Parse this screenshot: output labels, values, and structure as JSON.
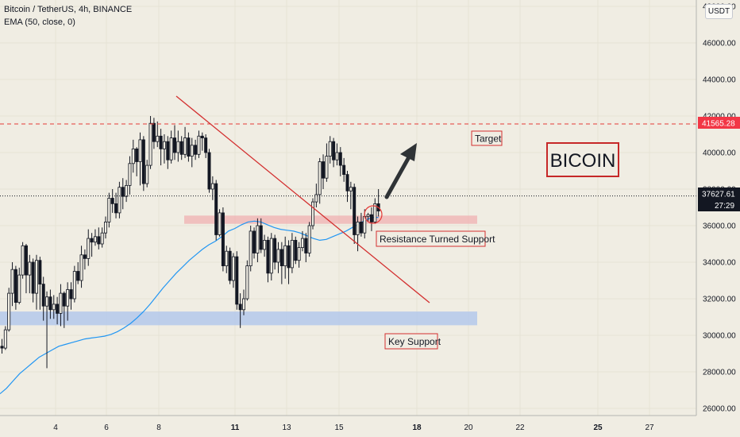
{
  "header": {
    "title": "Bitcoin / TetherUS, 4h, BINANCE",
    "indicator": "EMA (50, close, 0)"
  },
  "currency": "USDT",
  "colors": {
    "background": "#f0ede3",
    "candle": "#131722",
    "ema": "#2196f3",
    "trendline": "#d32f2f",
    "label_red": "#d32f2f",
    "current_price_bg": "#131722",
    "target_bg": "#f23645",
    "support_zone": "#b4c8eb",
    "resistance_zone": "#f0b4b4"
  },
  "chart_data": {
    "type": "candlestick",
    "y_axis": {
      "range": [
        25000,
        48500
      ],
      "ticks": [
        "26000.00",
        "28000.00",
        "30000.00",
        "32000.00",
        "34000.00",
        "36000.00",
        "38000.00",
        "40000.00",
        "42000.00",
        "44000.00",
        "46000.00",
        "48000.00"
      ]
    },
    "x_axis": {
      "ticks": [
        "4",
        "6",
        "8",
        "11",
        "13",
        "15",
        "18",
        "20",
        "22",
        "25",
        "27"
      ],
      "bold": [
        "11",
        "18",
        "25"
      ]
    },
    "price_levels": {
      "target": {
        "value": 41565.28,
        "label": "41565.28"
      },
      "current": {
        "value": 37627.61,
        "label": "37627.61",
        "countdown": "27:29"
      }
    },
    "candles": [
      [
        29400,
        29300,
        29800,
        29000
      ],
      [
        29300,
        30300,
        30500,
        29200
      ],
      [
        30300,
        32300,
        32600,
        30200
      ],
      [
        32300,
        33600,
        34000,
        31600
      ],
      [
        33600,
        31800,
        33800,
        31400
      ],
      [
        31800,
        33300,
        33700,
        31700
      ],
      [
        33300,
        34900,
        35100,
        33100
      ],
      [
        34900,
        33300,
        35000,
        32300
      ],
      [
        33300,
        34000,
        34400,
        32300
      ],
      [
        34000,
        32300,
        34200,
        31800
      ],
      [
        32300,
        34100,
        34400,
        31400
      ],
      [
        34100,
        32800,
        34300,
        31400
      ],
      [
        32800,
        31600,
        33200,
        30800
      ],
      [
        31600,
        32100,
        32400,
        28200
      ],
      [
        32100,
        31400,
        32500,
        30900
      ],
      [
        31400,
        31700,
        32200,
        30900
      ],
      [
        31700,
        31200,
        32100,
        30600
      ],
      [
        31200,
        32300,
        32800,
        30500
      ],
      [
        32300,
        31600,
        32400,
        30400
      ],
      [
        31600,
        32500,
        32900,
        30800
      ],
      [
        32500,
        32000,
        32900,
        31400
      ],
      [
        32000,
        33500,
        33800,
        31800
      ],
      [
        33500,
        33000,
        34000,
        32800
      ],
      [
        33000,
        34400,
        34900,
        32600
      ],
      [
        34400,
        34200,
        34700,
        33600
      ],
      [
        34200,
        35300,
        35800,
        33800
      ],
      [
        35300,
        35100,
        35600,
        34300
      ],
      [
        35100,
        35400,
        35800,
        34900
      ],
      [
        35400,
        35000,
        35900,
        34700
      ],
      [
        35000,
        35600,
        35900,
        34800
      ],
      [
        35600,
        36200,
        36500,
        35300
      ],
      [
        36200,
        37500,
        37800,
        35900
      ],
      [
        37500,
        37200,
        38000,
        36700
      ],
      [
        37200,
        36700,
        37800,
        36400
      ],
      [
        36700,
        38100,
        38400,
        36400
      ],
      [
        38100,
        37600,
        38600,
        36900
      ],
      [
        37600,
        38200,
        38500,
        37300
      ],
      [
        38200,
        39400,
        39800,
        37700
      ],
      [
        39400,
        40200,
        40700,
        38900
      ],
      [
        40200,
        39500,
        40300,
        38700
      ],
      [
        39500,
        40700,
        41100,
        38200
      ],
      [
        40700,
        38300,
        40900,
        37900
      ],
      [
        38300,
        39300,
        39600,
        38100
      ],
      [
        39300,
        41600,
        42000,
        39100
      ],
      [
        41600,
        40600,
        41900,
        40200
      ],
      [
        40600,
        40900,
        41700,
        40300
      ],
      [
        40900,
        40200,
        41300,
        39300
      ],
      [
        40200,
        40600,
        41000,
        39400
      ],
      [
        40600,
        39600,
        40900,
        39100
      ],
      [
        39600,
        40800,
        41200,
        39400
      ],
      [
        40800,
        40000,
        41500,
        39600
      ],
      [
        40000,
        40600,
        41200,
        39500
      ],
      [
        40600,
        39900,
        40900,
        39600
      ],
      [
        39900,
        40800,
        41400,
        39700
      ],
      [
        40800,
        39800,
        41100,
        39500
      ],
      [
        39800,
        40400,
        40800,
        39200
      ],
      [
        40400,
        39900,
        40700,
        39600
      ],
      [
        39900,
        40900,
        41200,
        39700
      ],
      [
        40900,
        40800,
        41100,
        40100
      ],
      [
        40800,
        40000,
        41000,
        39700
      ],
      [
        40000,
        38000,
        40200,
        37800
      ],
      [
        38000,
        38300,
        38700,
        37400
      ],
      [
        38300,
        35500,
        38500,
        35200
      ],
      [
        35500,
        36700,
        36900,
        35400
      ],
      [
        36700,
        33800,
        37000,
        33500
      ],
      [
        33800,
        34600,
        34900,
        33400
      ],
      [
        34600,
        33000,
        34800,
        32800
      ],
      [
        33000,
        34300,
        34500,
        32600
      ],
      [
        34300,
        31700,
        34600,
        31400
      ],
      [
        31700,
        31400,
        32300,
        30400
      ],
      [
        31400,
        32000,
        32500,
        31100
      ],
      [
        32000,
        33800,
        34100,
        31900
      ],
      [
        33800,
        35700,
        36000,
        33500
      ],
      [
        35700,
        34500,
        35900,
        34200
      ],
      [
        34500,
        36000,
        36400,
        34000
      ],
      [
        36000,
        34700,
        36400,
        34500
      ],
      [
        34700,
        35200,
        35500,
        34300
      ],
      [
        35200,
        33400,
        35400,
        32900
      ],
      [
        33400,
        35300,
        35600,
        33000
      ],
      [
        35300,
        34000,
        35500,
        33600
      ],
      [
        34000,
        34700,
        35100,
        33400
      ],
      [
        34700,
        33800,
        35100,
        32800
      ],
      [
        33800,
        34900,
        35400,
        33100
      ],
      [
        34900,
        33700,
        35200,
        32800
      ],
      [
        33700,
        35200,
        35600,
        33400
      ],
      [
        35200,
        34100,
        35400,
        33900
      ],
      [
        34100,
        34800,
        35100,
        33700
      ],
      [
        34800,
        35300,
        35700,
        34600
      ],
      [
        35300,
        34500,
        35600,
        34000
      ],
      [
        34500,
        36000,
        36200,
        34300
      ],
      [
        36000,
        37300,
        37500,
        35800
      ],
      [
        37300,
        37700,
        38300,
        37000
      ],
      [
        37700,
        39500,
        39700,
        37200
      ],
      [
        39500,
        38600,
        39900,
        38000
      ],
      [
        38600,
        39800,
        40500,
        38400
      ],
      [
        39800,
        40600,
        40900,
        39400
      ],
      [
        40600,
        39600,
        40800,
        39200
      ],
      [
        39600,
        40000,
        40500,
        39300
      ],
      [
        40000,
        39300,
        40300,
        38700
      ],
      [
        39300,
        38800,
        39700,
        38400
      ],
      [
        38800,
        37900,
        39000,
        37300
      ],
      [
        37900,
        38100,
        38400,
        36900
      ],
      [
        38100,
        35500,
        38300,
        35000
      ],
      [
        35500,
        36200,
        36500,
        34600
      ],
      [
        36200,
        35600,
        36700,
        35400
      ],
      [
        35600,
        36500,
        36900,
        35300
      ],
      [
        36500,
        36600,
        36700,
        36200
      ],
      [
        36600,
        36200,
        37000,
        35700
      ],
      [
        36200,
        37200,
        37500,
        36100
      ],
      [
        37200,
        36800,
        38000,
        36500
      ]
    ],
    "ema_values": [
      26800,
      27100,
      27500,
      27900,
      28200,
      28500,
      28800,
      29000,
      29200,
      29400,
      29500,
      29600,
      29700,
      29800,
      29850,
      29900,
      29950,
      30050,
      30200,
      30400,
      30650,
      30950,
      31300,
      31700,
      32150,
      32600,
      33000,
      33400,
      33750,
      34100,
      34400,
      34700,
      34950,
      35150,
      35400,
      35700,
      35850,
      36050,
      36200,
      36250,
      36200,
      36050,
      35900,
      35800,
      35750,
      35700,
      35600,
      35450,
      35300,
      35200,
      35250,
      35400,
      35550,
      35700,
      35900,
      36100,
      36300,
      36450,
      36450
    ],
    "zones": [
      {
        "name": "support",
        "y_top": 31300,
        "y_bottom": 30550
      },
      {
        "name": "resistance",
        "y_top": 36550,
        "y_bottom": 36100
      }
    ],
    "trendline": {
      "from": [
        41200,
        42600
      ],
      "to": [
        31700,
        541
      ]
    },
    "annotations": {
      "target": "Target",
      "resistance": "Resistance Turned Support",
      "key_support": "Key Support",
      "title_box": "BICOIN"
    }
  }
}
